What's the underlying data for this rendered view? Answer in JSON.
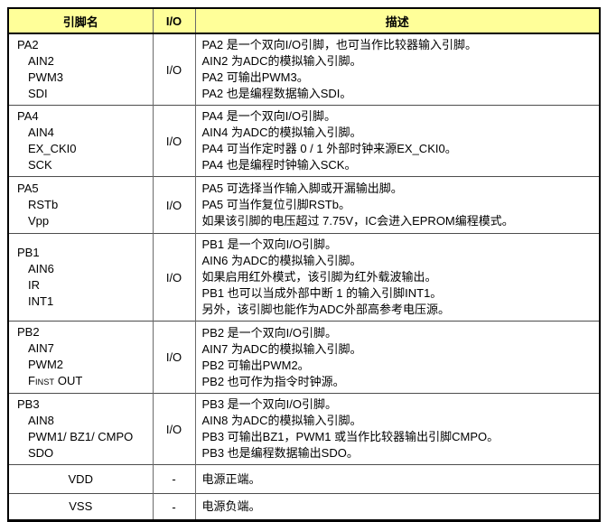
{
  "table": {
    "header_bg": "#ffff99",
    "headers": [
      "引脚名",
      "I/O",
      "描述"
    ],
    "rows": [
      {
        "names": [
          "PA2",
          "AIN2",
          "PWM3",
          "SDI"
        ],
        "io": "I/O",
        "desc": [
          "PA2 是一个双向I/O引脚，也可当作比较器输入引脚。",
          "AIN2 为ADC的模拟输入引脚。",
          "PA2 可输出PWM3。",
          "PA2 也是编程数据输入SDI。"
        ]
      },
      {
        "names": [
          "PA4",
          "AIN4",
          "EX_CKI0",
          "SCK"
        ],
        "io": "I/O",
        "desc": [
          "PA4 是一个双向I/O引脚。",
          "AIN4 为ADC的模拟输入引脚。",
          "PA4 可当作定时器 0 / 1 外部时钟来源EX_CKI0。",
          "PA4 也是编程时钟输入SCK。"
        ]
      },
      {
        "names": [
          "PA5",
          "RSTb",
          "Vpp"
        ],
        "io": "I/O",
        "desc": [
          "PA5 可选择当作输入脚或开漏输出脚。",
          "PA5 可当作复位引脚RSTb。",
          "如果该引脚的电压超过 7.75V，IC会进入EPROM编程模式。"
        ]
      },
      {
        "names": [
          "PB1",
          "AIN6",
          "IR",
          "INT1"
        ],
        "io": "I/O",
        "desc": [
          "PB1 是一个双向I/O引脚。",
          "AIN6 为ADC的模拟输入引脚。",
          "如果启用红外模式，该引脚为红外载波输出。",
          "PB1 也可以当成外部中断 1 的输入引脚INT1。",
          "另外，该引脚也能作为ADC外部高参考电压源。"
        ]
      },
      {
        "names": [
          "PB2",
          "AIN7",
          "PWM2",
          {
            "pre": "F",
            "sub": "INST",
            "post": " OUT"
          }
        ],
        "io": "I/O",
        "desc": [
          "PB2 是一个双向I/O引脚。",
          "AIN7 为ADC的模拟输入引脚。",
          "PB2 可输出PWM2。",
          "PB2 也可作为指令时钟源。"
        ]
      },
      {
        "names": [
          "PB3",
          "AIN8",
          "PWM1/ BZ1/ CMPO",
          "SDO"
        ],
        "io": "I/O",
        "desc": [
          "PB3 是一个双向I/O引脚。",
          "AIN8 为ADC的模拟输入引脚。",
          "PB3 可输出BZ1，PWM1 或当作比较器输出引脚CMPO。",
          "PB3 也是编程数据输出SDO。"
        ]
      },
      {
        "names": [
          "VDD"
        ],
        "centered": true,
        "io": "-",
        "desc": [
          "电源正端。"
        ]
      },
      {
        "names": [
          "VSS"
        ],
        "centered": true,
        "io": "-",
        "desc": [
          "电源负端。"
        ]
      }
    ]
  }
}
